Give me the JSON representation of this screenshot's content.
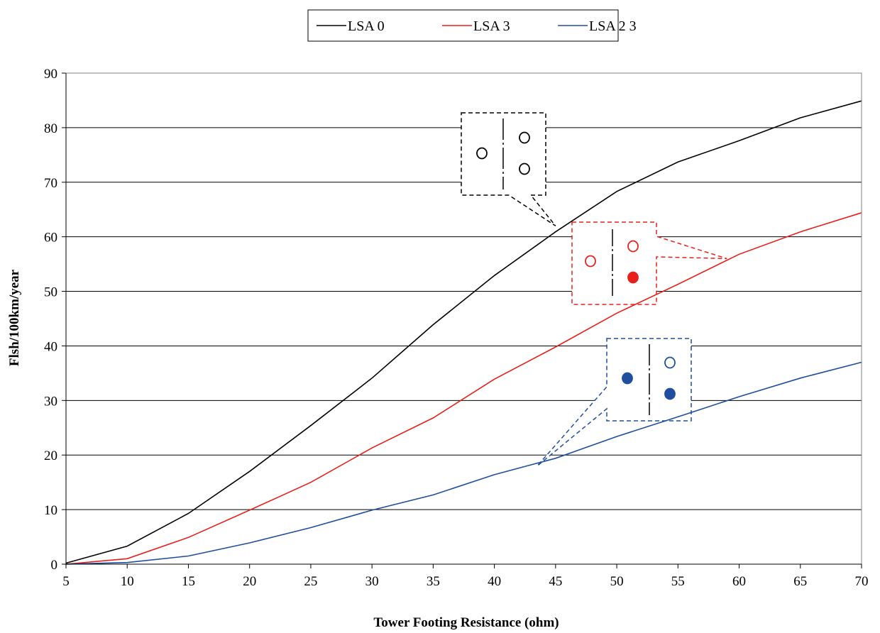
{
  "chart_data": {
    "type": "line",
    "title": "",
    "xlabel": "Tower Footing Resistance (ohm)",
    "ylabel": "Flsh/100km/year",
    "x": [
      5,
      10,
      15,
      20,
      25,
      30,
      35,
      40,
      45,
      50,
      55,
      60,
      65,
      70
    ],
    "xlim": [
      5,
      70
    ],
    "ylim": [
      0,
      90
    ],
    "x_ticks": [
      "5",
      "10",
      "15",
      "20",
      "25",
      "30",
      "35",
      "40",
      "45",
      "50",
      "55",
      "60",
      "65",
      "70"
    ],
    "y_ticks": [
      "0",
      "10",
      "20",
      "30",
      "40",
      "50",
      "60",
      "70",
      "80",
      "90"
    ],
    "grid": "horizontal",
    "legend_position": "top-center",
    "series": [
      {
        "name": "LSA  0",
        "color": "#000000",
        "values": [
          0.2,
          3.3,
          9.3,
          17.0,
          25.4,
          34.1,
          43.9,
          52.9,
          60.9,
          68.3,
          73.7,
          77.6,
          81.8,
          84.9
        ]
      },
      {
        "name": "LSA  3",
        "color": "#e8201c",
        "values": [
          0.0,
          1.0,
          4.9,
          9.9,
          15.0,
          21.3,
          26.8,
          33.9,
          39.8,
          46.0,
          51.3,
          56.8,
          60.9,
          64.4
        ]
      },
      {
        "name": "LSA  2 3",
        "color": "#1f4e9e",
        "values": [
          0.0,
          0.3,
          1.5,
          3.9,
          6.7,
          9.9,
          12.7,
          16.4,
          19.4,
          23.4,
          27.0,
          30.7,
          34.1,
          37.0
        ]
      }
    ],
    "annotations": [
      {
        "series_color": "#000000",
        "arrow_to": [
          45,
          62
        ],
        "left_markers": [
          "open"
        ],
        "right_markers": [
          "open",
          "open"
        ]
      },
      {
        "series_color": "#e8201c",
        "arrow_to": [
          59,
          56
        ],
        "left_markers": [
          "open"
        ],
        "right_markers": [
          "open",
          "filled"
        ]
      },
      {
        "series_color": "#1f4e9e",
        "arrow_to": [
          43.5,
          18
        ],
        "left_markers": [
          "filled"
        ],
        "right_markers": [
          "open",
          "filled"
        ]
      }
    ]
  }
}
